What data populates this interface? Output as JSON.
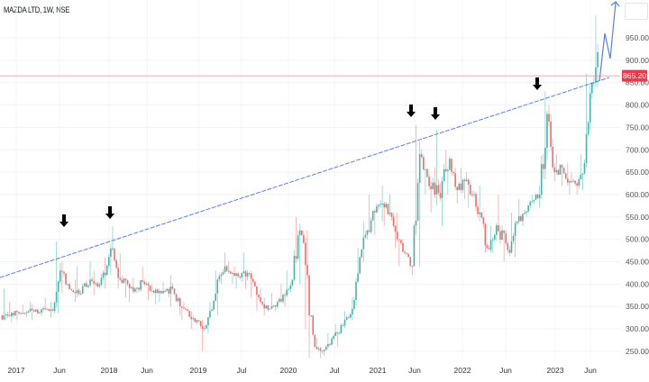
{
  "header": {
    "title": "MAZDA LTD, 1W, NSE"
  },
  "colors": {
    "up": "#26a69a",
    "down": "#ef5350",
    "trendline": "#5b7fe0",
    "price_line": "#f28b95",
    "price_label_bg": "#f23645",
    "arrow": "#000000"
  },
  "chart_data": {
    "type": "candlestick",
    "title": "MAZDA LTD, 1W, NSE",
    "interval": "1W",
    "ylim": [
      230,
      1010
    ],
    "y_ticks": [
      "950.00",
      "900.00",
      "850.00",
      "800.00",
      "750.00",
      "700.00",
      "650.00",
      "600.00",
      "550.00",
      "500.00",
      "450.00",
      "400.00",
      "350.00",
      "300.00",
      "250.00"
    ],
    "x_ticks": [
      "2017",
      "Jun",
      "2018",
      "Jun",
      "2019",
      "Jul",
      "2020",
      "Jul",
      "2021",
      "Jun",
      "2022",
      "Jun",
      "2023",
      "Jun"
    ],
    "last_price": "865.20",
    "grid": true,
    "monthly_candles_start": "2016-11",
    "monthly_candles_close_high_low": [
      [
        330,
        390,
        320
      ],
      [
        340,
        360,
        315
      ],
      [
        335,
        355,
        320
      ],
      [
        345,
        360,
        325
      ],
      [
        335,
        355,
        320
      ],
      [
        345,
        370,
        330
      ],
      [
        340,
        360,
        325
      ],
      [
        430,
        495,
        335
      ],
      [
        400,
        450,
        380
      ],
      [
        380,
        410,
        360
      ],
      [
        395,
        440,
        370
      ],
      [
        410,
        450,
        390
      ],
      [
        395,
        430,
        375
      ],
      [
        420,
        460,
        390
      ],
      [
        480,
        530,
        420
      ],
      [
        410,
        470,
        390
      ],
      [
        400,
        420,
        370
      ],
      [
        390,
        415,
        360
      ],
      [
        405,
        440,
        380
      ],
      [
        385,
        410,
        365
      ],
      [
        380,
        400,
        355
      ],
      [
        385,
        405,
        360
      ],
      [
        390,
        420,
        350
      ],
      [
        350,
        380,
        330
      ],
      [
        340,
        360,
        320
      ],
      [
        315,
        340,
        300
      ],
      [
        300,
        320,
        250
      ],
      [
        340,
        360,
        290
      ],
      [
        410,
        430,
        330
      ],
      [
        440,
        470,
        400
      ],
      [
        425,
        450,
        400
      ],
      [
        415,
        440,
        390
      ],
      [
        425,
        470,
        390
      ],
      [
        395,
        430,
        370
      ],
      [
        355,
        390,
        340
      ],
      [
        345,
        370,
        330
      ],
      [
        360,
        380,
        340
      ],
      [
        375,
        400,
        350
      ],
      [
        410,
        430,
        370
      ],
      [
        520,
        550,
        400
      ],
      [
        420,
        520,
        300
      ],
      [
        260,
        330,
        235
      ],
      [
        250,
        280,
        235
      ],
      [
        265,
        290,
        240
      ],
      [
        290,
        310,
        260
      ],
      [
        320,
        340,
        290
      ],
      [
        345,
        370,
        320
      ],
      [
        460,
        480,
        340
      ],
      [
        520,
        540,
        450
      ],
      [
        560,
        600,
        510
      ],
      [
        580,
        620,
        540
      ],
      [
        560,
        600,
        530
      ],
      [
        500,
        560,
        480
      ],
      [
        470,
        500,
        440
      ],
      [
        440,
        470,
        420
      ],
      [
        690,
        755,
        440
      ],
      [
        640,
        700,
        600
      ],
      [
        600,
        660,
        560
      ],
      [
        630,
        745,
        530
      ],
      [
        680,
        700,
        600
      ],
      [
        610,
        660,
        580
      ],
      [
        630,
        660,
        590
      ],
      [
        600,
        650,
        570
      ],
      [
        560,
        620,
        540
      ],
      [
        480,
        560,
        470
      ],
      [
        510,
        530,
        470
      ],
      [
        520,
        600,
        490
      ],
      [
        470,
        520,
        450
      ],
      [
        540,
        560,
        460
      ],
      [
        560,
        590,
        530
      ],
      [
        585,
        600,
        550
      ],
      [
        600,
        620,
        570
      ],
      [
        780,
        830,
        590
      ],
      [
        650,
        800,
        630
      ],
      [
        660,
        690,
        620
      ],
      [
        630,
        670,
        600
      ],
      [
        620,
        650,
        600
      ],
      [
        670,
        690,
        610
      ],
      [
        850,
        870,
        660
      ],
      [
        920,
        1000,
        840
      ],
      [
        865,
        910,
        845
      ]
    ],
    "annotations": {
      "trendline": {
        "from_price": 410,
        "to_price": 855,
        "style": "dashed"
      },
      "resistance_touch_arrows": 5,
      "projection": "upward zigzag arrow"
    }
  }
}
